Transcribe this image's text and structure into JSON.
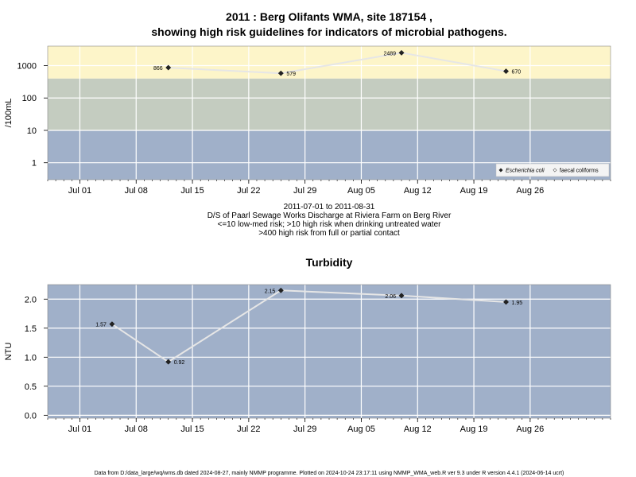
{
  "figure": {
    "title_line1": "2011 : Berg Olifants WMA, site 187154 ,",
    "title_line2": "showing high risk guidelines for indicators of microbial pathogens.",
    "footer": "Data from D:/data_large/wq/wms.db dated 2024-08-27, mainly NMMP programme. Plotted on 2024-10-24 23:17:11 using NMMP_WMA_web.R ver 9.3 under R version 4.4.1 (2024-06-14 ucrt)"
  },
  "colors": {
    "band_high": "#fdf5c9",
    "band_mid": "#c4ccc0",
    "band_low": "#a0b0c9",
    "line": "#e6e6e6",
    "grid": "#ffffff",
    "point": "#222222"
  },
  "chart_data": [
    {
      "type": "line",
      "title": "",
      "ylabel": "/100mL",
      "y_scale": "log",
      "ylim": [
        0.3,
        4000
      ],
      "xlim": [
        "2011-06-27",
        "2011-09-05"
      ],
      "grid": true,
      "x_tick_labels": [
        {
          "date": "2011-07-01",
          "label": "Jul 01"
        },
        {
          "date": "2011-07-08",
          "label": "Jul 08"
        },
        {
          "date": "2011-07-15",
          "label": "Jul 15"
        },
        {
          "date": "2011-07-22",
          "label": "Jul 22"
        },
        {
          "date": "2011-07-29",
          "label": "Jul 29"
        },
        {
          "date": "2011-08-05",
          "label": "Aug 05"
        },
        {
          "date": "2011-08-12",
          "label": "Aug 12"
        },
        {
          "date": "2011-08-19",
          "label": "Aug 19"
        },
        {
          "date": "2011-08-26",
          "label": "Aug 26"
        }
      ],
      "y_ticks": [
        {
          "value": 1,
          "label": "1"
        },
        {
          "value": 10,
          "label": "10"
        },
        {
          "value": 100,
          "label": "100"
        },
        {
          "value": 1000,
          "label": "1000"
        }
      ],
      "bands": [
        {
          "from": 0.3,
          "to": 10,
          "color": "#a0b0c9"
        },
        {
          "from": 10,
          "to": 400,
          "color": "#c4ccc0"
        },
        {
          "from": 400,
          "to": 4000,
          "color": "#fdf5c9"
        }
      ],
      "series": [
        {
          "name": "Escherichia coli",
          "marker": "filled-diamond",
          "x": [
            "2011-07-12",
            "2011-07-26",
            "2011-08-10",
            "2011-08-23"
          ],
          "y": [
            866,
            579,
            2489,
            670
          ],
          "labels": [
            "866",
            "579",
            "2489",
            "670"
          ],
          "label_sides": [
            "left",
            "right",
            "left",
            "right"
          ]
        }
      ],
      "legend": {
        "placement": "bottom-right",
        "items": [
          {
            "label": "Escherichia coli",
            "marker": "filled-diamond"
          },
          {
            "label": "faecal coliforms",
            "marker": "open-diamond"
          }
        ]
      },
      "caption_lines": [
        "2011-07-01 to 2011-08-31",
        "D/S of Paarl Sewage Works Discharge at Riviera Farm on Berg River",
        "<=10 low-med risk; >10 high risk when drinking untreated water",
        ">400 high risk from full or partial contact"
      ]
    },
    {
      "type": "line",
      "title": "Turbidity",
      "ylabel": "NTU",
      "y_scale": "linear",
      "ylim": [
        -0.05,
        2.25
      ],
      "xlim": [
        "2011-06-27",
        "2011-09-05"
      ],
      "grid": true,
      "x_tick_labels": [
        {
          "date": "2011-07-01",
          "label": "Jul 01"
        },
        {
          "date": "2011-07-08",
          "label": "Jul 08"
        },
        {
          "date": "2011-07-15",
          "label": "Jul 15"
        },
        {
          "date": "2011-07-22",
          "label": "Jul 22"
        },
        {
          "date": "2011-07-29",
          "label": "Jul 29"
        },
        {
          "date": "2011-08-05",
          "label": "Aug 05"
        },
        {
          "date": "2011-08-12",
          "label": "Aug 12"
        },
        {
          "date": "2011-08-19",
          "label": "Aug 19"
        },
        {
          "date": "2011-08-26",
          "label": "Aug 26"
        }
      ],
      "y_ticks": [
        {
          "value": 0.0,
          "label": "0.0"
        },
        {
          "value": 0.5,
          "label": "0.5"
        },
        {
          "value": 1.0,
          "label": "1.0"
        },
        {
          "value": 1.5,
          "label": "1.5"
        },
        {
          "value": 2.0,
          "label": "2.0"
        }
      ],
      "series": [
        {
          "x": [
            "2011-07-05",
            "2011-07-12",
            "2011-07-26",
            "2011-08-10",
            "2011-08-23"
          ],
          "y": [
            1.57,
            0.92,
            2.15,
            2.06,
            1.95
          ],
          "labels": [
            "1.57",
            "0.92",
            "2.15",
            "2.06",
            "1.95"
          ],
          "label_sides": [
            "left",
            "right",
            "left",
            "left",
            "right"
          ]
        }
      ]
    }
  ]
}
